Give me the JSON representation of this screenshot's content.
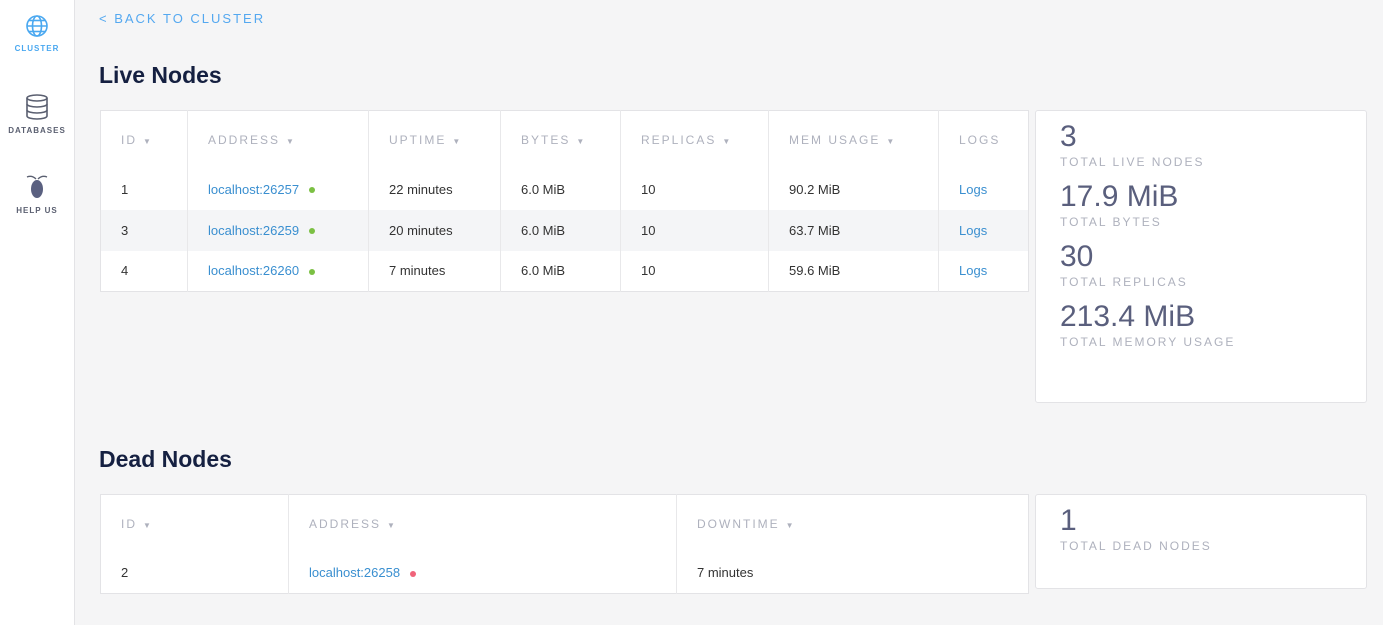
{
  "sidebar": {
    "items": [
      {
        "label": "CLUSTER",
        "icon": "globe-icon",
        "active": true
      },
      {
        "label": "DATABASES",
        "icon": "database-icon"
      },
      {
        "label": "HELP US",
        "icon": "bug-icon"
      }
    ]
  },
  "back_link": "< BACK TO CLUSTER",
  "live": {
    "title": "Live Nodes",
    "columns": [
      "ID",
      "ADDRESS",
      "UPTIME",
      "BYTES",
      "REPLICAS",
      "MEM USAGE",
      "LOGS"
    ],
    "rows": [
      {
        "id": "1",
        "address": "localhost:26257",
        "uptime": "22 minutes",
        "bytes": "6.0 MiB",
        "replicas": "10",
        "mem": "90.2 MiB",
        "logs": "Logs"
      },
      {
        "id": "3",
        "address": "localhost:26259",
        "uptime": "20 minutes",
        "bytes": "6.0 MiB",
        "replicas": "10",
        "mem": "63.7 MiB",
        "logs": "Logs"
      },
      {
        "id": "4",
        "address": "localhost:26260",
        "uptime": "7 minutes",
        "bytes": "6.0 MiB",
        "replicas": "10",
        "mem": "59.6 MiB",
        "logs": "Logs"
      }
    ],
    "summary": [
      {
        "value": "3",
        "label": "TOTAL LIVE NODES"
      },
      {
        "value": "17.9 MiB",
        "label": "TOTAL BYTES"
      },
      {
        "value": "30",
        "label": "TOTAL REPLICAS"
      },
      {
        "value": "213.4 MiB",
        "label": "TOTAL MEMORY USAGE"
      }
    ]
  },
  "dead": {
    "title": "Dead Nodes",
    "columns": [
      "ID",
      "ADDRESS",
      "DOWNTIME"
    ],
    "rows": [
      {
        "id": "2",
        "address": "localhost:26258",
        "downtime": "7 minutes"
      }
    ],
    "summary": [
      {
        "value": "1",
        "label": "TOTAL DEAD NODES"
      }
    ]
  },
  "colors": {
    "accent": "#4aa8f0",
    "live_dot": "#7bc043",
    "dead_dot": "#f0637a"
  }
}
